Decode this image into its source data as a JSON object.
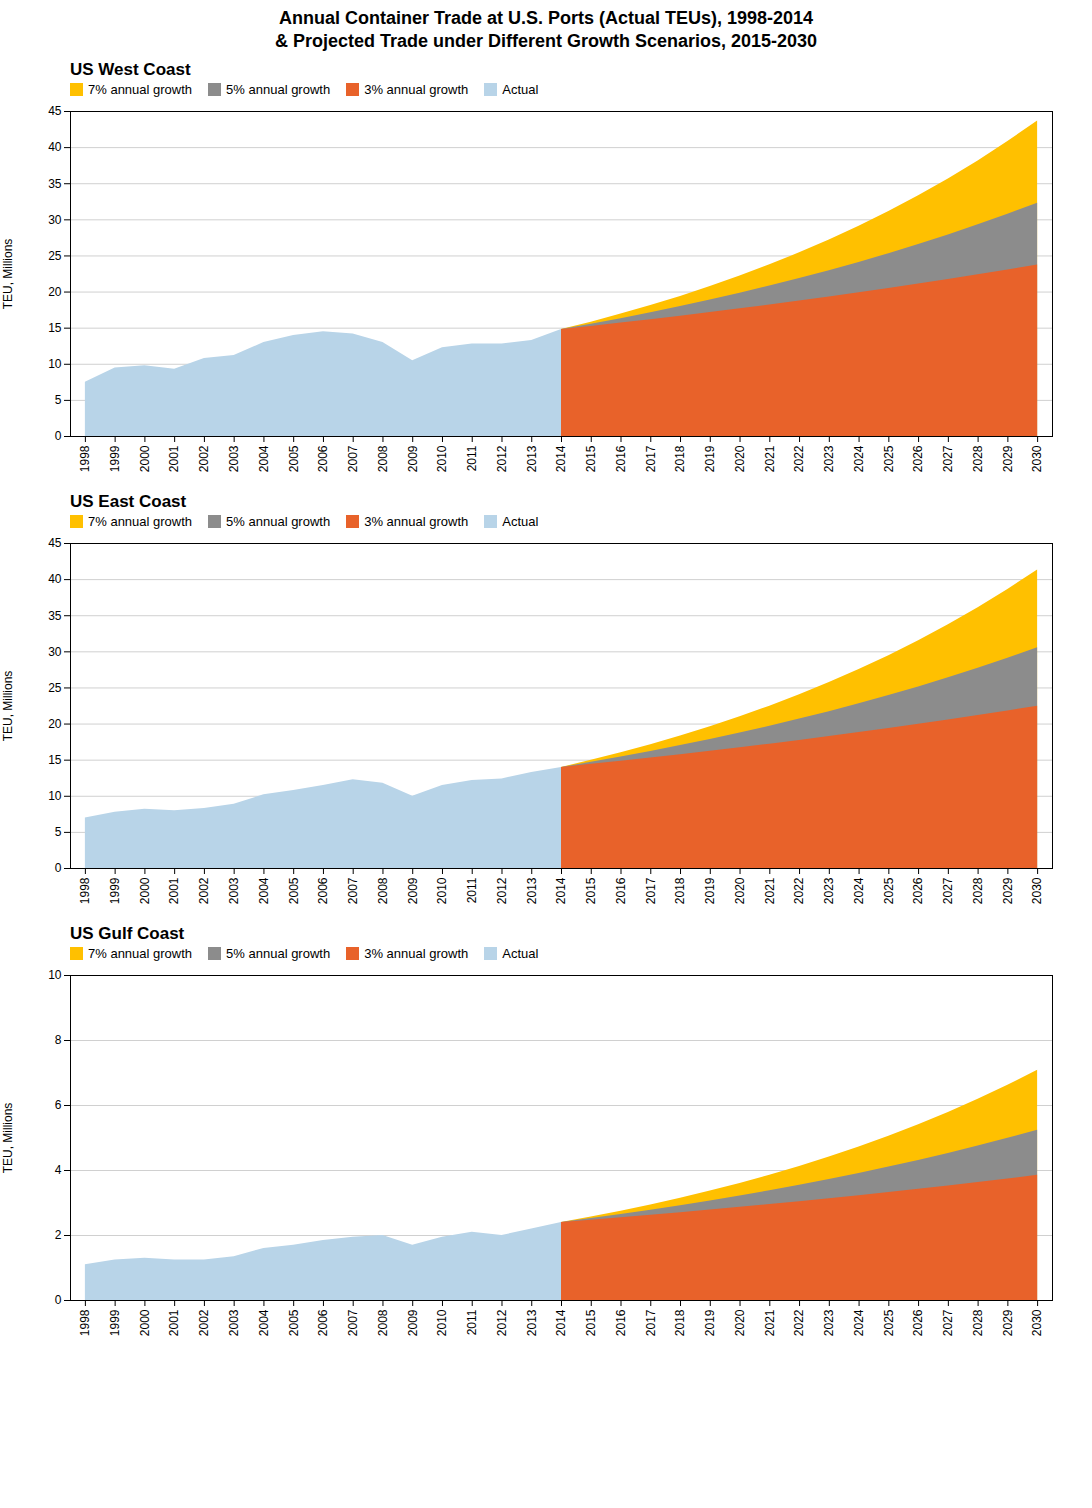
{
  "title": "Annual Container Trade at U.S. Ports (Actual TEUs), 1998-2014",
  "subtitle": "& Projected Trade under Different Growth Scenarios, 2015-2030",
  "chart_data": [
    {
      "type": "area",
      "title": "US West Coast",
      "ylabel": "TEU, Millions",
      "x": [
        1998,
        1999,
        2000,
        2001,
        2002,
        2003,
        2004,
        2005,
        2006,
        2007,
        2008,
        2009,
        2010,
        2011,
        2012,
        2013,
        2014,
        2015,
        2016,
        2017,
        2018,
        2019,
        2020,
        2021,
        2022,
        2023,
        2024,
        2025,
        2026,
        2027,
        2028,
        2029,
        2030
      ],
      "xlim": [
        1997.5,
        2030.5
      ],
      "xticks": [
        1998,
        1999,
        2000,
        2001,
        2002,
        2003,
        2004,
        2005,
        2006,
        2007,
        2008,
        2009,
        2010,
        2011,
        2012,
        2013,
        2014,
        2015,
        2016,
        2017,
        2018,
        2019,
        2020,
        2021,
        2022,
        2023,
        2024,
        2025,
        2026,
        2027,
        2028,
        2029,
        2030
      ],
      "ylim": [
        0,
        45
      ],
      "yticks": [
        0,
        5,
        10,
        15,
        20,
        25,
        30,
        35,
        40,
        45
      ],
      "grid": "y",
      "legend": "top-left",
      "series": [
        {
          "name": "7% annual growth",
          "color": "#ffc000",
          "values": [
            null,
            null,
            null,
            null,
            null,
            null,
            null,
            null,
            null,
            null,
            null,
            null,
            null,
            null,
            null,
            null,
            14.8,
            15.836,
            16.9445,
            18.1306,
            19.3998,
            20.7578,
            22.2108,
            23.7656,
            25.4292,
            27.2092,
            29.1138,
            31.1518,
            33.3324,
            35.6667,
            38.1623,
            40.8337,
            43.692
          ]
        },
        {
          "name": "5% annual growth",
          "color": "#8c8c8c",
          "values": [
            null,
            null,
            null,
            null,
            null,
            null,
            null,
            null,
            null,
            null,
            null,
            null,
            null,
            null,
            null,
            null,
            14.8,
            15.54,
            16.317,
            17.1329,
            17.9895,
            18.889,
            19.8334,
            20.8251,
            21.8663,
            22.9597,
            24.1076,
            25.313,
            26.5787,
            27.9076,
            29.303,
            30.7681,
            32.3065
          ]
        },
        {
          "name": "3% annual growth",
          "color": "#e8622a",
          "values": [
            null,
            null,
            null,
            null,
            null,
            null,
            null,
            null,
            null,
            null,
            null,
            null,
            null,
            null,
            null,
            null,
            14.8,
            15.244,
            15.7013,
            16.1724,
            16.6575,
            17.1573,
            17.672,
            18.2021,
            18.7482,
            19.3106,
            19.89,
            20.4867,
            21.1013,
            21.7343,
            22.3863,
            23.0579,
            23.7497
          ]
        },
        {
          "name": "Actual",
          "color": "#b8d4e8",
          "values": [
            7.5,
            9.5,
            9.8,
            9.3,
            10.8,
            11.2,
            13.0,
            14.0,
            14.5,
            14.2,
            13.0,
            10.5,
            12.3,
            12.8,
            12.8,
            13.3,
            14.8,
            null,
            null,
            null,
            null,
            null,
            null,
            null,
            null,
            null,
            null,
            null,
            null,
            null,
            null,
            null,
            null
          ]
        }
      ]
    },
    {
      "type": "area",
      "title": "US East Coast",
      "ylabel": "TEU, Millions",
      "x": [
        1998,
        1999,
        2000,
        2001,
        2002,
        2003,
        2004,
        2005,
        2006,
        2007,
        2008,
        2009,
        2010,
        2011,
        2012,
        2013,
        2014,
        2015,
        2016,
        2017,
        2018,
        2019,
        2020,
        2021,
        2022,
        2023,
        2024,
        2025,
        2026,
        2027,
        2028,
        2029,
        2030
      ],
      "xlim": [
        1997.5,
        2030.5
      ],
      "xticks": [
        1998,
        1999,
        2000,
        2001,
        2002,
        2003,
        2004,
        2005,
        2006,
        2007,
        2008,
        2009,
        2010,
        2011,
        2012,
        2013,
        2014,
        2015,
        2016,
        2017,
        2018,
        2019,
        2020,
        2021,
        2022,
        2023,
        2024,
        2025,
        2026,
        2027,
        2028,
        2029,
        2030
      ],
      "ylim": [
        0,
        45
      ],
      "yticks": [
        0,
        5,
        10,
        15,
        20,
        25,
        30,
        35,
        40,
        45
      ],
      "grid": "y",
      "legend": "top-left",
      "series": [
        {
          "name": "7% annual growth",
          "color": "#ffc000",
          "values": [
            null,
            null,
            null,
            null,
            null,
            null,
            null,
            null,
            null,
            null,
            null,
            null,
            null,
            null,
            null,
            null,
            14.0,
            14.98,
            16.0286,
            17.1506,
            18.3511,
            19.6357,
            21.0102,
            22.4809,
            24.0546,
            25.7384,
            27.5401,
            29.4679,
            31.5307,
            33.7378,
            36.0995,
            38.6264,
            41.3303
          ]
        },
        {
          "name": "5% annual growth",
          "color": "#8c8c8c",
          "values": [
            null,
            null,
            null,
            null,
            null,
            null,
            null,
            null,
            null,
            null,
            null,
            null,
            null,
            null,
            null,
            null,
            14.0,
            14.7,
            15.435,
            16.2068,
            17.0171,
            17.8679,
            18.7613,
            19.6994,
            20.6844,
            21.7186,
            22.8045,
            23.9448,
            25.142,
            26.3991,
            27.719,
            29.105,
            30.5602
          ]
        },
        {
          "name": "3% annual growth",
          "color": "#e8622a",
          "values": [
            null,
            null,
            null,
            null,
            null,
            null,
            null,
            null,
            null,
            null,
            null,
            null,
            null,
            null,
            null,
            null,
            14.0,
            14.42,
            14.8526,
            15.2982,
            15.7571,
            16.2298,
            16.7167,
            17.2182,
            17.7348,
            18.2668,
            18.8148,
            19.3793,
            19.9607,
            20.5595,
            21.1763,
            21.8115,
            22.4659
          ]
        },
        {
          "name": "Actual",
          "color": "#b8d4e8",
          "values": [
            7.0,
            7.8,
            8.2,
            8.0,
            8.3,
            8.9,
            10.2,
            10.8,
            11.5,
            12.3,
            11.8,
            10.0,
            11.5,
            12.2,
            12.4,
            13.3,
            14.0,
            null,
            null,
            null,
            null,
            null,
            null,
            null,
            null,
            null,
            null,
            null,
            null,
            null,
            null,
            null,
            null
          ]
        }
      ]
    },
    {
      "type": "area",
      "title": "US Gulf Coast",
      "ylabel": "TEU, Millions",
      "x": [
        1998,
        1999,
        2000,
        2001,
        2002,
        2003,
        2004,
        2005,
        2006,
        2007,
        2008,
        2009,
        2010,
        2011,
        2012,
        2013,
        2014,
        2015,
        2016,
        2017,
        2018,
        2019,
        2020,
        2021,
        2022,
        2023,
        2024,
        2025,
        2026,
        2027,
        2028,
        2029,
        2030
      ],
      "xlim": [
        1997.5,
        2030.5
      ],
      "xticks": [
        1998,
        1999,
        2000,
        2001,
        2002,
        2003,
        2004,
        2005,
        2006,
        2007,
        2008,
        2009,
        2010,
        2011,
        2012,
        2013,
        2014,
        2015,
        2016,
        2017,
        2018,
        2019,
        2020,
        2021,
        2022,
        2023,
        2024,
        2025,
        2026,
        2027,
        2028,
        2029,
        2030
      ],
      "ylim": [
        0,
        10
      ],
      "yticks": [
        0,
        2,
        4,
        6,
        8,
        10
      ],
      "grid": "y",
      "legend": "top-left",
      "series": [
        {
          "name": "7% annual growth",
          "color": "#ffc000",
          "values": [
            null,
            null,
            null,
            null,
            null,
            null,
            null,
            null,
            null,
            null,
            null,
            null,
            null,
            null,
            null,
            null,
            2.4,
            2.568,
            2.74776,
            2.9401,
            3.1459,
            3.3661,
            3.6018,
            3.8539,
            4.1236,
            4.4123,
            4.7212,
            5.0516,
            5.4053,
            5.7836,
            6.1885,
            6.6217,
            7.0852
          ]
        },
        {
          "name": "5% annual growth",
          "color": "#8c8c8c",
          "values": [
            null,
            null,
            null,
            null,
            null,
            null,
            null,
            null,
            null,
            null,
            null,
            null,
            null,
            null,
            null,
            null,
            2.4,
            2.52,
            2.646,
            2.7783,
            2.9172,
            3.0631,
            3.2162,
            3.377,
            3.5459,
            3.7232,
            3.9093,
            4.1048,
            4.3101,
            4.5256,
            4.7518,
            4.9894,
            5.2389
          ]
        },
        {
          "name": "3% annual growth",
          "color": "#e8622a",
          "values": [
            null,
            null,
            null,
            null,
            null,
            null,
            null,
            null,
            null,
            null,
            null,
            null,
            null,
            null,
            null,
            null,
            2.4,
            2.472,
            2.54616,
            2.6225,
            2.7012,
            2.7823,
            2.8657,
            2.9517,
            3.0402,
            3.1315,
            3.2254,
            3.3222,
            3.4218,
            3.5245,
            3.6302,
            3.7391,
            3.8513
          ]
        },
        {
          "name": "Actual",
          "color": "#b8d4e8",
          "values": [
            1.1,
            1.25,
            1.3,
            1.25,
            1.25,
            1.35,
            1.6,
            1.7,
            1.85,
            1.95,
            2.0,
            1.7,
            1.95,
            2.1,
            2.0,
            2.2,
            2.4,
            null,
            null,
            null,
            null,
            null,
            null,
            null,
            null,
            null,
            null,
            null,
            null,
            null,
            null,
            null,
            null
          ]
        }
      ]
    }
  ]
}
